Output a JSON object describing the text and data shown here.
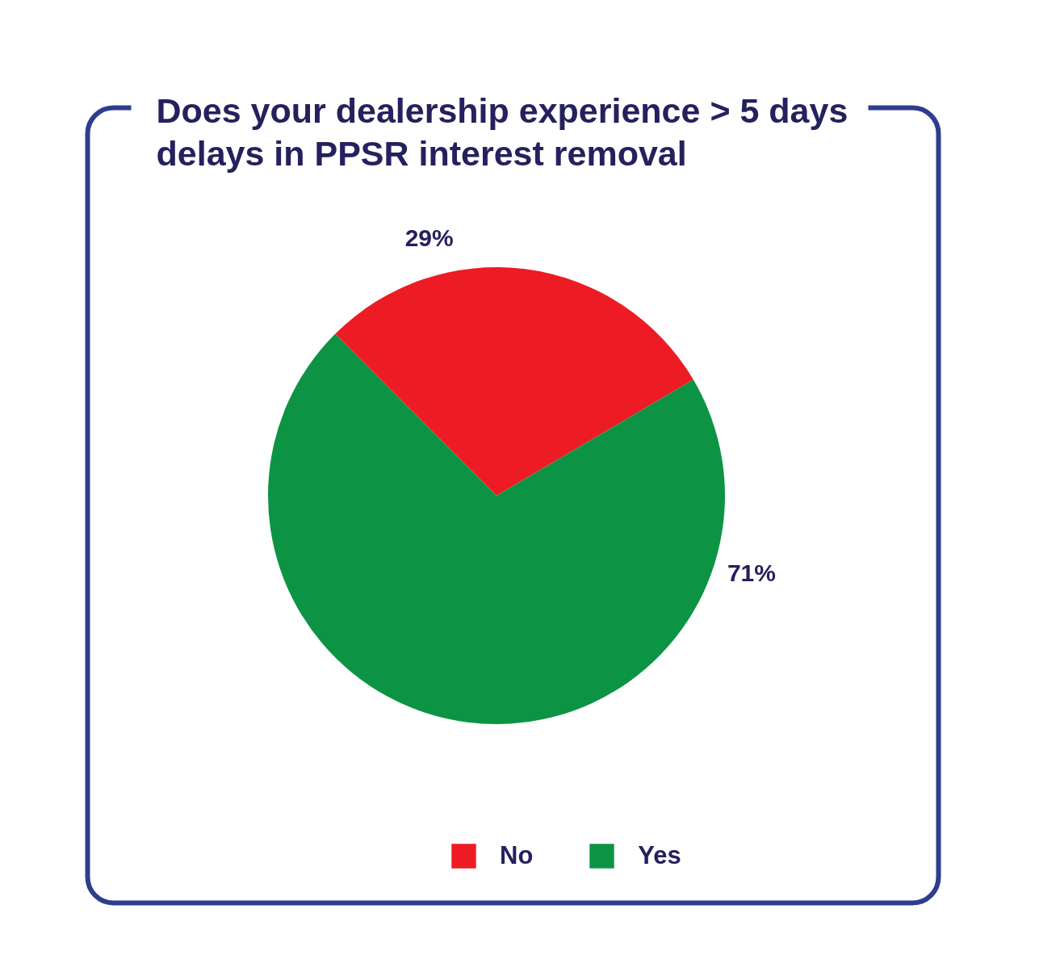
{
  "chart_data": {
    "type": "pie",
    "title": "Does your dealership experience > 5 days delays in PPSR interest removal",
    "categories": [
      "No",
      "Yes"
    ],
    "values": [
      29,
      71
    ],
    "colors": [
      "#ed1c24",
      "#0c9444"
    ],
    "value_labels": [
      "29%",
      "71%"
    ],
    "legend": "bottom"
  }
}
